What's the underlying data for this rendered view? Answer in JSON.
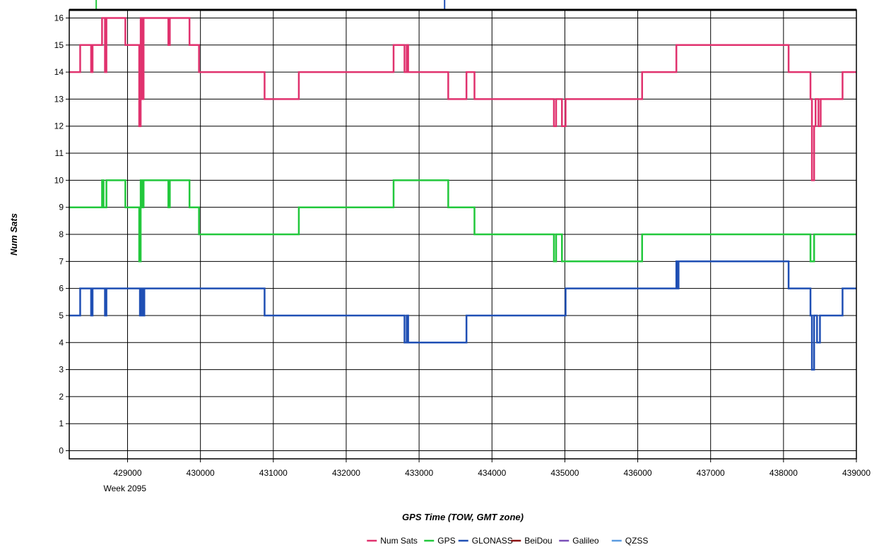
{
  "chart_data": {
    "type": "line",
    "step": true,
    "title": "",
    "xlabel": "GPS Time (TOW, GMT zone)",
    "ylabel": "Num Sats",
    "x_week_label": "Week 2095",
    "xlim": [
      428200,
      439000
    ],
    "ylim": [
      -0.3,
      16.3
    ],
    "x_ticks": [
      429000,
      430000,
      431000,
      432000,
      433000,
      434000,
      435000,
      436000,
      437000,
      438000,
      439000
    ],
    "y_ticks": [
      0,
      1,
      2,
      3,
      4,
      5,
      6,
      7,
      8,
      9,
      10,
      11,
      12,
      13,
      14,
      15,
      16
    ],
    "grid": true,
    "legend_position": "bottom-center",
    "legend": [
      "Num Sats",
      "GPS",
      "GLONASS",
      "BeiDou",
      "Galileo",
      "QZSS"
    ],
    "series": [
      {
        "name": "Num Sats",
        "color": "#e0326e",
        "points": [
          [
            428200,
            14
          ],
          [
            428350,
            14
          ],
          [
            428350,
            15
          ],
          [
            428500,
            15
          ],
          [
            428500,
            14
          ],
          [
            428520,
            14
          ],
          [
            428520,
            15
          ],
          [
            428650,
            15
          ],
          [
            428650,
            16
          ],
          [
            428690,
            16
          ],
          [
            428690,
            14
          ],
          [
            428710,
            14
          ],
          [
            428710,
            16
          ],
          [
            428970,
            16
          ],
          [
            428970,
            15
          ],
          [
            429160,
            15
          ],
          [
            429160,
            12
          ],
          [
            429180,
            12
          ],
          [
            429180,
            16
          ],
          [
            429200,
            16
          ],
          [
            429200,
            13
          ],
          [
            429220,
            13
          ],
          [
            429220,
            16
          ],
          [
            429560,
            16
          ],
          [
            429560,
            15
          ],
          [
            429580,
            15
          ],
          [
            429580,
            16
          ],
          [
            429850,
            16
          ],
          [
            429850,
            15
          ],
          [
            429980,
            15
          ],
          [
            429980,
            14
          ],
          [
            430880,
            14
          ],
          [
            430880,
            13
          ],
          [
            431350,
            13
          ],
          [
            431350,
            14
          ],
          [
            432650,
            14
          ],
          [
            432650,
            15
          ],
          [
            432800,
            15
          ],
          [
            432800,
            14
          ],
          [
            432830,
            14
          ],
          [
            432830,
            15
          ],
          [
            432850,
            15
          ],
          [
            432850,
            14
          ],
          [
            433400,
            14
          ],
          [
            433400,
            13
          ],
          [
            433650,
            13
          ],
          [
            433650,
            14
          ],
          [
            433760,
            14
          ],
          [
            433760,
            13
          ],
          [
            434850,
            13
          ],
          [
            434850,
            12
          ],
          [
            434880,
            12
          ],
          [
            434880,
            13
          ],
          [
            434960,
            13
          ],
          [
            434960,
            12
          ],
          [
            435010,
            12
          ],
          [
            435010,
            13
          ],
          [
            436060,
            13
          ],
          [
            436060,
            14
          ],
          [
            436530,
            14
          ],
          [
            436530,
            15
          ],
          [
            438070,
            15
          ],
          [
            438070,
            14
          ],
          [
            438370,
            14
          ],
          [
            438370,
            13
          ],
          [
            438390,
            13
          ],
          [
            438390,
            10
          ],
          [
            438420,
            10
          ],
          [
            438420,
            12
          ],
          [
            438440,
            12
          ],
          [
            438440,
            13
          ],
          [
            438480,
            13
          ],
          [
            438480,
            12
          ],
          [
            438510,
            12
          ],
          [
            438510,
            13
          ],
          [
            438810,
            13
          ],
          [
            438810,
            14
          ],
          [
            439000,
            14
          ]
        ]
      },
      {
        "name": "GPS",
        "color": "#22c83c",
        "points": [
          [
            428200,
            9
          ],
          [
            428650,
            9
          ],
          [
            428650,
            10
          ],
          [
            428670,
            10
          ],
          [
            428670,
            9
          ],
          [
            428710,
            9
          ],
          [
            428710,
            10
          ],
          [
            428970,
            10
          ],
          [
            428970,
            9
          ],
          [
            429160,
            9
          ],
          [
            429160,
            7
          ],
          [
            429180,
            7
          ],
          [
            429180,
            10
          ],
          [
            429200,
            10
          ],
          [
            429200,
            9
          ],
          [
            429220,
            9
          ],
          [
            429220,
            10
          ],
          [
            429560,
            10
          ],
          [
            429560,
            9
          ],
          [
            429580,
            9
          ],
          [
            429580,
            10
          ],
          [
            429850,
            10
          ],
          [
            429850,
            9
          ],
          [
            429980,
            9
          ],
          [
            429980,
            8
          ],
          [
            431350,
            8
          ],
          [
            431350,
            9
          ],
          [
            432650,
            9
          ],
          [
            432650,
            10
          ],
          [
            433400,
            10
          ],
          [
            433400,
            9
          ],
          [
            433760,
            9
          ],
          [
            433760,
            8
          ],
          [
            434850,
            8
          ],
          [
            434850,
            7
          ],
          [
            434880,
            7
          ],
          [
            434880,
            8
          ],
          [
            434960,
            8
          ],
          [
            434960,
            7
          ],
          [
            436060,
            7
          ],
          [
            436060,
            8
          ],
          [
            438370,
            8
          ],
          [
            438370,
            7
          ],
          [
            438420,
            7
          ],
          [
            438420,
            8
          ],
          [
            439000,
            8
          ]
        ]
      },
      {
        "name": "GLONASS",
        "color": "#1f4fb4",
        "points": [
          [
            428200,
            5
          ],
          [
            428350,
            5
          ],
          [
            428350,
            6
          ],
          [
            428500,
            6
          ],
          [
            428500,
            5
          ],
          [
            428520,
            5
          ],
          [
            428520,
            6
          ],
          [
            428690,
            6
          ],
          [
            428690,
            5
          ],
          [
            428710,
            5
          ],
          [
            428710,
            6
          ],
          [
            429170,
            6
          ],
          [
            429170,
            5
          ],
          [
            429190,
            5
          ],
          [
            429190,
            6
          ],
          [
            429210,
            6
          ],
          [
            429210,
            5
          ],
          [
            429230,
            5
          ],
          [
            429230,
            6
          ],
          [
            430880,
            6
          ],
          [
            430880,
            5
          ],
          [
            432800,
            5
          ],
          [
            432800,
            4
          ],
          [
            432830,
            4
          ],
          [
            432830,
            5
          ],
          [
            432850,
            5
          ],
          [
            432850,
            4
          ],
          [
            433650,
            4
          ],
          [
            433650,
            5
          ],
          [
            435010,
            5
          ],
          [
            435010,
            6
          ],
          [
            436530,
            6
          ],
          [
            436530,
            7
          ],
          [
            436550,
            7
          ],
          [
            436550,
            6
          ],
          [
            436560,
            6
          ],
          [
            436560,
            7
          ],
          [
            438070,
            7
          ],
          [
            438070,
            6
          ],
          [
            438370,
            6
          ],
          [
            438370,
            5
          ],
          [
            438390,
            5
          ],
          [
            438390,
            3
          ],
          [
            438420,
            3
          ],
          [
            438420,
            5
          ],
          [
            438460,
            5
          ],
          [
            438460,
            4
          ],
          [
            438500,
            4
          ],
          [
            438500,
            5
          ],
          [
            438810,
            5
          ],
          [
            438810,
            6
          ],
          [
            439000,
            6
          ]
        ]
      },
      {
        "name": "BeiDou",
        "color": "#8b1010",
        "points": []
      },
      {
        "name": "Galileo",
        "color": "#7a4fb8",
        "points": []
      },
      {
        "name": "QZSS",
        "color": "#5a9be0",
        "points": []
      }
    ],
    "top_markers": [
      {
        "x": 428570,
        "color": "#22c83c"
      },
      {
        "x": 433350,
        "color": "#1f4fb4"
      }
    ]
  }
}
